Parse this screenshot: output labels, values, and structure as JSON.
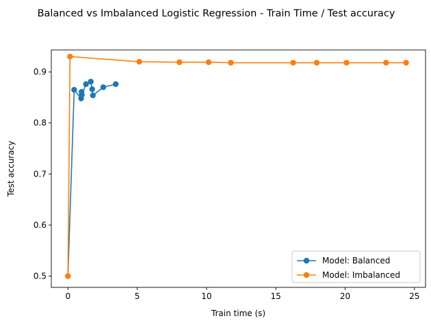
{
  "chart_data": {
    "type": "line",
    "title": "Balanced vs Imbalanced Logistic Regression - Train Time / Test accuracy",
    "xlabel": "Train time (s)",
    "ylabel": "Test accuracy",
    "xlim": [
      -1.2,
      25.8
    ],
    "ylim": [
      0.478,
      0.943
    ],
    "xticks": [
      0,
      5,
      10,
      15,
      20,
      25
    ],
    "xtick_labels": [
      "0",
      "5",
      "10",
      "15",
      "20",
      "25"
    ],
    "yticks": [
      0.5,
      0.6,
      0.7,
      0.8,
      0.9
    ],
    "ytick_labels": [
      "0.5",
      "0.6",
      "0.7",
      "0.8",
      "0.9"
    ],
    "grid": false,
    "legend_position": "bottom-right",
    "series": [
      {
        "name": "Model: Balanced",
        "color": "#1f77b4",
        "marker": "circle",
        "x": [
          0.0,
          0.45,
          0.95,
          0.98,
          1.0,
          1.3,
          1.65,
          1.75,
          1.8,
          2.55,
          3.45
        ],
        "y": [
          0.5,
          0.865,
          0.848,
          0.861,
          0.855,
          0.876,
          0.881,
          0.866,
          0.854,
          0.87,
          0.876
        ]
      },
      {
        "name": "Model: Imbalanced",
        "color": "#ff7f0e",
        "marker": "circle",
        "x": [
          0.0,
          0.15,
          5.15,
          8.05,
          10.15,
          11.75,
          16.25,
          17.95,
          20.1,
          22.95,
          24.4
        ],
        "y": [
          0.5,
          0.93,
          0.92,
          0.919,
          0.919,
          0.918,
          0.918,
          0.918,
          0.918,
          0.918,
          0.918
        ]
      }
    ]
  }
}
